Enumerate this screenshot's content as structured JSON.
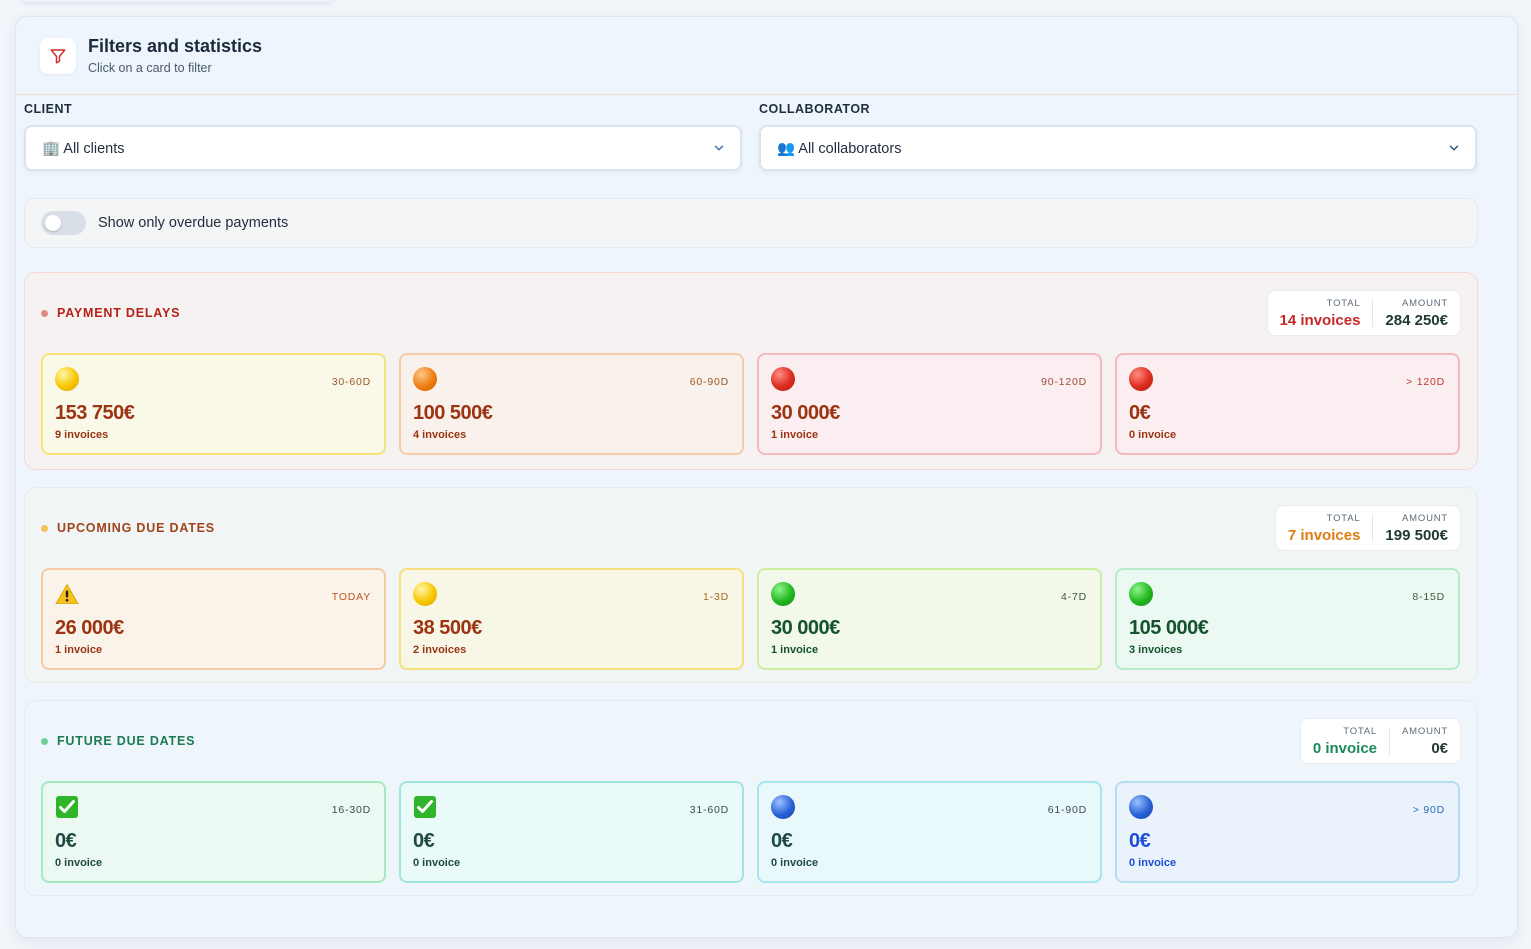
{
  "header": {
    "title": "Filters and statistics",
    "subtitle": "Click on a card to filter"
  },
  "filters": {
    "client_label": "CLIENT",
    "client_value": "🏢 All clients",
    "collaborator_label": "COLLABORATOR",
    "collaborator_value": "👥 All collaborators",
    "overdue_toggle_label": "Show only overdue payments",
    "overdue_toggle_on": false
  },
  "sections": {
    "delays": {
      "title": "PAYMENT DELAYS",
      "total_label": "TOTAL",
      "amount_label": "AMOUNT",
      "total_value": "14 invoices",
      "amount_value": "284 250€",
      "cards": [
        {
          "range": "30-60D",
          "amount": "153 750€",
          "count": "9 invoices",
          "icon": "yellow-circle-icon"
        },
        {
          "range": "60-90D",
          "amount": "100 500€",
          "count": "4 invoices",
          "icon": "orange-circle-icon"
        },
        {
          "range": "90-120D",
          "amount": "30 000€",
          "count": "1 invoice",
          "icon": "red-circle-icon"
        },
        {
          "range": "> 120D",
          "amount": "0€",
          "count": "0 invoice",
          "icon": "red-circle-icon"
        }
      ]
    },
    "upcoming": {
      "title": "UPCOMING DUE DATES",
      "total_label": "TOTAL",
      "amount_label": "AMOUNT",
      "total_value": "7 invoices",
      "amount_value": "199 500€",
      "cards": [
        {
          "range": "TODAY",
          "amount": "26 000€",
          "count": "1 invoice",
          "icon": "warning-icon"
        },
        {
          "range": "1-3D",
          "amount": "38 500€",
          "count": "2 invoices",
          "icon": "yellow-circle-icon"
        },
        {
          "range": "4-7D",
          "amount": "30 000€",
          "count": "1 invoice",
          "icon": "green-circle-icon"
        },
        {
          "range": "8-15D",
          "amount": "105 000€",
          "count": "3 invoices",
          "icon": "green-circle-icon"
        }
      ]
    },
    "future": {
      "title": "FUTURE DUE DATES",
      "total_label": "TOTAL",
      "amount_label": "AMOUNT",
      "total_value": "0 invoice",
      "amount_value": "0€",
      "cards": [
        {
          "range": "16-30D",
          "amount": "0€",
          "count": "0 invoice",
          "icon": "check-box-icon"
        },
        {
          "range": "31-60D",
          "amount": "0€",
          "count": "0 invoice",
          "icon": "check-box-icon"
        },
        {
          "range": "61-90D",
          "amount": "0€",
          "count": "0 invoice",
          "icon": "blue-circle-icon"
        },
        {
          "range": "> 90D",
          "amount": "0€",
          "count": "0 invoice",
          "icon": "blue-circle-icon"
        }
      ]
    }
  },
  "colors": {
    "delays_accent": "#c0392b",
    "upcoming_accent": "#e67e22",
    "future_accent": "#1e8a5a",
    "amount_brown": "#9a3412",
    "amount_green": "#14532d",
    "amount_blue": "#1d4ed8"
  }
}
